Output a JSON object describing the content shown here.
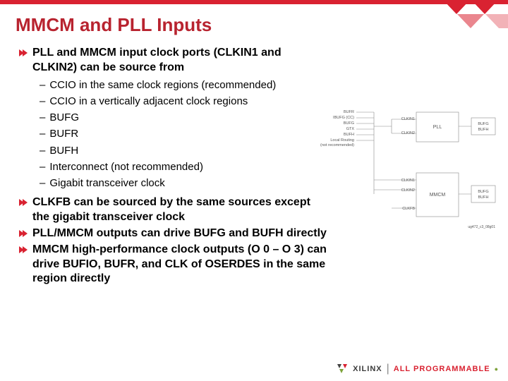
{
  "colors": {
    "brand_red": "#d92231",
    "title_color": "#b8232f",
    "text_color": "#000000",
    "diagram_line": "#6b6b6b",
    "diagram_bg": "#ffffff",
    "footer_xilinx": "#3a3a3a",
    "footer_allprog": "#d92231",
    "footer_dot": "#7da23a"
  },
  "title": "MMCM  and PLL Inputs",
  "bullets": [
    {
      "text": "PLL and MMCM input clock ports (CLKIN1 and CLKIN2) can be source from",
      "subs": [
        "CCIO in the same clock regions (recommended)",
        "CCIO in a vertically adjacent clock regions",
        "BUFG",
        "BUFR",
        "BUFH",
        "Interconnect  (not recommended)",
        "Gigabit transceiver clock"
      ]
    },
    {
      "text": "CLKFB can be sourced by the same sources except the gigabit transceiver clock",
      "subs": []
    },
    {
      "text": "PLL/MMCM outputs can drive BUFG and BUFH directly",
      "subs": []
    },
    {
      "text": "MMCM high-performance clock outputs (O 0 – O 3) can drive BUFIO, BUFR, and CLK of OSERDES in the same region directly",
      "subs": []
    }
  ],
  "diagram": {
    "source_labels": [
      "BUFR",
      "IBUFG (CC)",
      "BUFG",
      "GTX",
      "BUFH",
      "Local Routing",
      "(not recommended)"
    ],
    "pll_inputs": [
      "CLKIN1",
      "CLKIN2"
    ],
    "pll_label": "PLL",
    "pll_output": "BUFG\nBUFH",
    "mmcm_inputs": [
      "CLKIN1",
      "CLKIN2",
      "CLKFB"
    ],
    "mmcm_label": "MMCM",
    "mmcm_output": "BUFG\nBUFH",
    "caption": "ug472_c3_08g01"
  },
  "footer": {
    "brand": "XILINX",
    "tagline": "ALL PROGRAMMABLE"
  }
}
